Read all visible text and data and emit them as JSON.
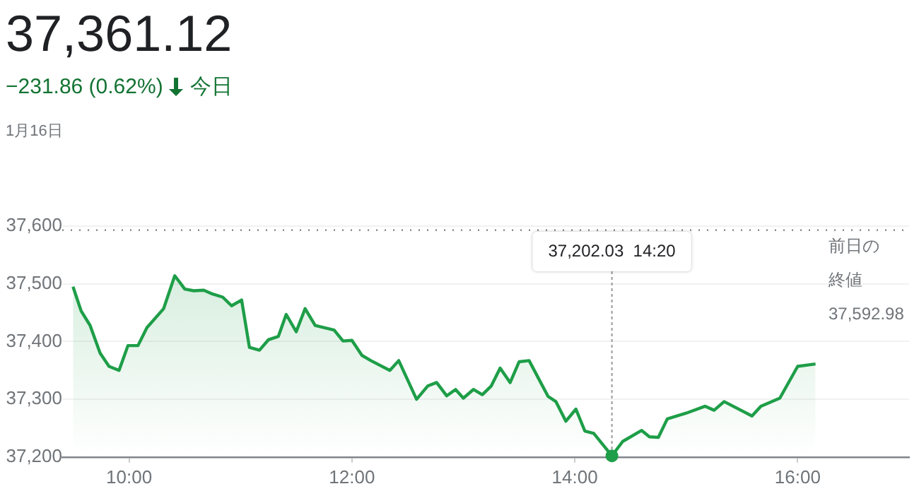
{
  "chart_data": {
    "type": "area",
    "title": "37,361.12",
    "subtitle": "−231.86 (0.62%)",
    "annotations": [
      "今日",
      "1月16日",
      {
        "text": "37,202.03  14:20",
        "x": 14.333,
        "y": 37202.03
      }
    ],
    "x": [
      9.497,
      9.57,
      9.65,
      9.74,
      9.82,
      9.91,
      9.99,
      10.08,
      10.16,
      10.31,
      10.41,
      10.5,
      10.58,
      10.67,
      10.74,
      10.84,
      10.92,
      11.01,
      11.08,
      11.17,
      11.25,
      11.34,
      11.41,
      11.5,
      11.58,
      11.67,
      11.84,
      11.92,
      12.0,
      12.09,
      12.17,
      12.34,
      12.42,
      12.58,
      12.68,
      12.76,
      12.85,
      12.93,
      13.0,
      13.09,
      13.17,
      13.25,
      13.33,
      13.42,
      13.5,
      13.59,
      13.76,
      13.83,
      13.92,
      14.01,
      14.09,
      14.17,
      14.333,
      14.43,
      14.6,
      14.67,
      14.75,
      14.83,
      15.0,
      15.17,
      15.25,
      15.34,
      15.59,
      15.67,
      15.84,
      16.0,
      16.16
    ],
    "series": [
      {
        "color": "#1e9e48",
        "values": [
          37495,
          37453,
          37428,
          37380,
          37357,
          37350,
          37393,
          37393,
          37424,
          37457,
          37514,
          37491,
          37488,
          37489,
          37483,
          37477,
          37462,
          37472,
          37390,
          37385,
          37403,
          37409,
          37447,
          37417,
          37457,
          37428,
          37420,
          37401,
          37402,
          37376,
          37367,
          37350,
          37367,
          37300,
          37323,
          37329,
          37306,
          37317,
          37302,
          37317,
          37308,
          37323,
          37354,
          37329,
          37365,
          37367,
          37305,
          37296,
          37262,
          37283,
          37245,
          37241,
          37202.03,
          37227,
          37246,
          37235,
          37234,
          37266,
          37276,
          37288,
          37281,
          37296,
          37271,
          37288,
          37302,
          37357,
          37361.12
        ]
      }
    ],
    "xlim": [
      9.4,
      17
    ],
    "xticks": [
      {
        "value": 10,
        "label": "10:00"
      },
      {
        "value": 12,
        "label": "12:00"
      },
      {
        "value": 14,
        "label": "14:00"
      },
      {
        "value": 16,
        "label": "16:00"
      }
    ],
    "ylim": [
      37200,
      37600
    ],
    "yticks": [
      {
        "value": 37200,
        "label": "37,200"
      },
      {
        "value": 37300,
        "label": "37,300"
      },
      {
        "value": 37400,
        "label": "37,400"
      },
      {
        "value": 37500,
        "label": "37,500"
      },
      {
        "value": 37600,
        "label": "37,600"
      }
    ],
    "grid": "y",
    "legend": false,
    "marker": "none",
    "line_style": "solid",
    "ref_lines": [
      {
        "axis": "y",
        "value": 37592.98,
        "label": "前日の終値 37,592.98",
        "color": "#888888",
        "line_style": "dotted"
      }
    ]
  }
}
